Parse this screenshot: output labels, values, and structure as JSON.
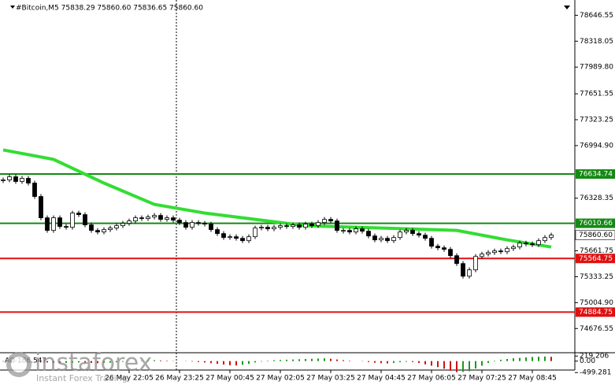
{
  "chart_data": {
    "type": "candlestick",
    "title": "#Bitcoin,M5  75838.29 75860.60 75836.65 75860.60",
    "categories": [
      null,
      null,
      null,
      null,
      null,
      null,
      null,
      null,
      null,
      null,
      null,
      null,
      null,
      null,
      null,
      null,
      null,
      null,
      null,
      null,
      "26 May 22:05",
      null,
      null,
      null,
      null,
      null,
      null,
      null,
      "26 May 23:25",
      null,
      null,
      null,
      null,
      null,
      null,
      null,
      "27 May 00:45",
      null,
      null,
      null,
      null,
      null,
      null,
      null,
      "27 May 02:05",
      null,
      null,
      null,
      null,
      null,
      null,
      null,
      "27 May 03:25",
      null,
      null,
      null,
      null,
      null,
      null,
      null,
      "27 May 04:45",
      null,
      null,
      null,
      null,
      null,
      null,
      null,
      "27 May 06:05",
      null,
      null,
      null,
      null,
      null,
      null,
      null,
      "27 May 07:25",
      null,
      null,
      null,
      null,
      null,
      null,
      null,
      "27 May 08:45",
      null,
      null,
      null
    ],
    "values": [
      76560,
      76600,
      76540,
      76580,
      76520,
      76350,
      76080,
      75920,
      76080,
      75970,
      75960,
      76140,
      76120,
      75990,
      75920,
      75900,
      75930,
      75950,
      75980,
      76010,
      76040,
      76080,
      76070,
      76090,
      76110,
      76060,
      76080,
      76050,
      76020,
      75960,
      76020,
      76010,
      76000,
      75930,
      75880,
      75830,
      75840,
      75820,
      75790,
      75840,
      75950,
      75960,
      75940,
      75960,
      75980,
      75970,
      75990,
      75960,
      76000,
      75980,
      76020,
      76060,
      76040,
      75920,
      75920,
      75900,
      75940,
      75910,
      75850,
      75800,
      75820,
      75790,
      75830,
      75900,
      75920,
      75880,
      75860,
      75820,
      75720,
      75700,
      75680,
      75600,
      75500,
      75340,
      75420,
      75590,
      75620,
      75640,
      75660,
      75650,
      75690,
      75710,
      75760,
      75750,
      75740,
      75790,
      75830,
      75860.6
    ],
    "up_color": "#ffffff",
    "down_color": "#000000",
    "ylim": [
      74370,
      78840
    ],
    "yticks": [
      78646.55,
      78318.05,
      {
        "value": 77989.8,
        "label": "77989.80"
      },
      77651.55,
      77323.25,
      {
        "value": 76994.9,
        "label": "76994.90"
      },
      76328.35,
      75661.75,
      75333.25,
      {
        "value": 75004.9,
        "label": "75004.90"
      },
      74676.55
    ],
    "moving_average": {
      "color": "#33dd33",
      "x": [
        0,
        8,
        16,
        24,
        32,
        40,
        48,
        56,
        64,
        72,
        80,
        87
      ],
      "values": [
        76940,
        76820,
        76520,
        76250,
        76140,
        76060,
        75980,
        75960,
        75940,
        75920,
        75800,
        75710
      ]
    },
    "levels": [
      {
        "value": 76634.74,
        "color": "#138a13"
      },
      {
        "value": 76010.66,
        "color": "#138a13"
      },
      {
        "value": 75564.75,
        "color": "#e01010"
      },
      {
        "value": 74884.75,
        "color": "#e01010"
      }
    ],
    "last_price": {
      "value": 75860.6,
      "label": "75860.60"
    },
    "ao": {
      "title": "AO 186.547",
      "up_color": "#1a9a1a",
      "down_color": "#d01010",
      "ylim": [
        -560,
        330
      ],
      "yticks": [
        219.206,
        {
          "value": 0,
          "label": "0.00"
        },
        -499.281
      ],
      "values": [
        -20,
        -40,
        -30,
        -20,
        -10,
        0,
        -30,
        -60,
        -80,
        -90,
        -80,
        -70,
        -60,
        -70,
        -80,
        -90,
        -80,
        -70,
        -50,
        -30,
        -10,
        10,
        20,
        30,
        40,
        30,
        20,
        10,
        0,
        -10,
        -20,
        -40,
        -60,
        -90,
        -120,
        -150,
        -180,
        -190,
        -160,
        -120,
        -60,
        -20,
        20,
        40,
        50,
        60,
        70,
        80,
        90,
        100,
        110,
        120,
        100,
        70,
        40,
        20,
        0,
        -10,
        -40,
        -70,
        -90,
        -100,
        -80,
        -50,
        -30,
        -40,
        -80,
        -140,
        -200,
        -260,
        -330,
        -420,
        -480,
        -470,
        -440,
        -320,
        -200,
        -80,
        20,
        60,
        90,
        120,
        140,
        160,
        180,
        190,
        200,
        186.547
      ]
    },
    "watermark": {
      "brand": "instaforex",
      "tagline": "Instant Forex Trading"
    }
  }
}
